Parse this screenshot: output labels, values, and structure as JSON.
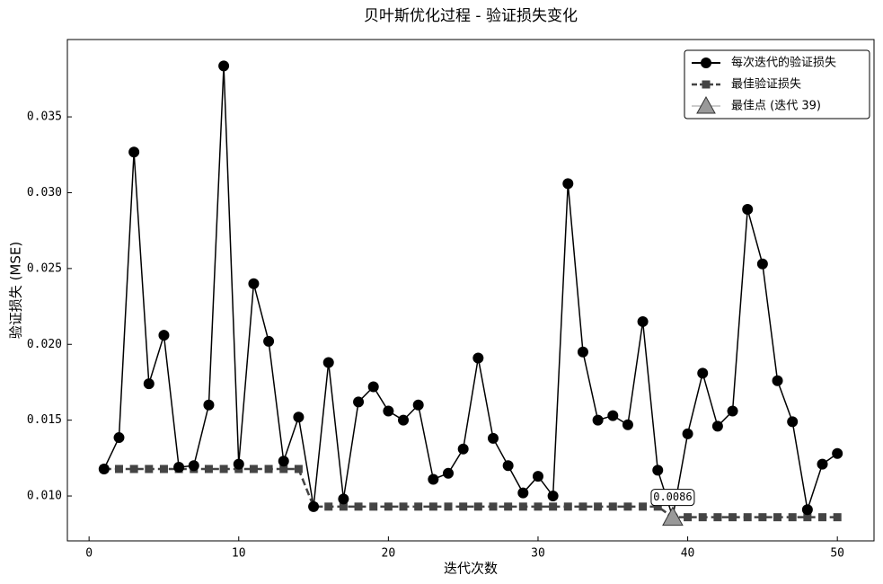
{
  "chart_data": {
    "type": "line",
    "title": "贝叶斯优化过程 - 验证损失变化",
    "x_label": "迭代次数",
    "y_label": "验证损失 (MSE)",
    "x": [
      1,
      2,
      3,
      4,
      5,
      6,
      7,
      8,
      9,
      10,
      11,
      12,
      13,
      14,
      15,
      16,
      17,
      18,
      19,
      20,
      21,
      22,
      23,
      24,
      25,
      26,
      27,
      28,
      29,
      30,
      31,
      32,
      33,
      34,
      35,
      36,
      37,
      38,
      39,
      40,
      41,
      42,
      43,
      44,
      45,
      46,
      47,
      48,
      49,
      50
    ],
    "series": [
      {
        "name": "每次迭代的验证损失",
        "color": "#000000",
        "marker": "circle",
        "dashed": false,
        "values": [
          0.01178,
          0.01385,
          0.03268,
          0.0174,
          0.0206,
          0.0119,
          0.012,
          0.016,
          0.03836,
          0.0121,
          0.024,
          0.0202,
          0.0123,
          0.0152,
          0.0093,
          0.0188,
          0.0098,
          0.0162,
          0.0172,
          0.0156,
          0.015,
          0.016,
          0.0111,
          0.0115,
          0.0131,
          0.0191,
          0.0138,
          0.012,
          0.0102,
          0.0113,
          0.01,
          0.0306,
          0.0195,
          0.015,
          0.0153,
          0.0147,
          0.0215,
          0.0117,
          0.0086,
          0.0141,
          0.0181,
          0.0146,
          0.0156,
          0.0289,
          0.0253,
          0.0176,
          0.0149,
          0.0091,
          0.0121,
          0.0128
        ]
      },
      {
        "name": "最佳验证损失",
        "color": "#444444",
        "marker": "square",
        "dashed": true,
        "values": [
          0.01178,
          0.01178,
          0.01178,
          0.01178,
          0.01178,
          0.01178,
          0.01178,
          0.01178,
          0.01178,
          0.01178,
          0.01178,
          0.01178,
          0.01178,
          0.01178,
          0.0093,
          0.0093,
          0.0093,
          0.0093,
          0.0093,
          0.0093,
          0.0093,
          0.0093,
          0.0093,
          0.0093,
          0.0093,
          0.0093,
          0.0093,
          0.0093,
          0.0093,
          0.0093,
          0.0093,
          0.0093,
          0.0093,
          0.0093,
          0.0093,
          0.0093,
          0.0093,
          0.0093,
          0.0086,
          0.0086,
          0.0086,
          0.0086,
          0.0086,
          0.0086,
          0.0086,
          0.0086,
          0.0086,
          0.0086,
          0.0086,
          0.0086
        ]
      }
    ],
    "best_point": {
      "name": "最佳点 (迭代 39)",
      "x": 39,
      "y": 0.0086,
      "label": "0.0086",
      "color": "#999999"
    },
    "xlim": [
      -1.45,
      52.45
    ],
    "ylim": [
      0.00704,
      0.0401
    ],
    "xticks": [
      0,
      10,
      20,
      30,
      40,
      50
    ],
    "yticks": [
      {
        "value": 0.01,
        "label": "0.010"
      },
      {
        "value": 0.015,
        "label": "0.015"
      },
      {
        "value": 0.02,
        "label": "0.020"
      },
      {
        "value": 0.025,
        "label": "0.025"
      },
      {
        "value": 0.03,
        "label": "0.030"
      },
      {
        "value": 0.035,
        "label": "0.035"
      }
    ],
    "legend": "upper right"
  }
}
